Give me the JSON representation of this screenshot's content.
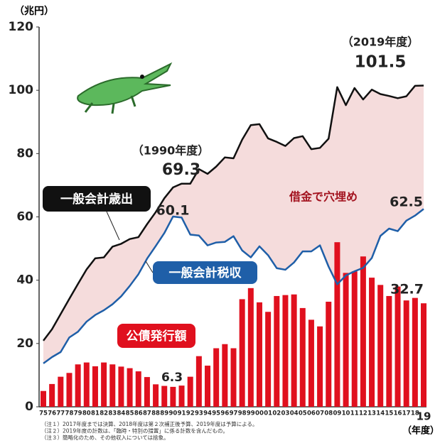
{
  "chart_data": {
    "type": "bar-line",
    "y_unit": "（兆円）",
    "x_unit": "（年度）",
    "categories": [
      "75",
      "76",
      "77",
      "78",
      "79",
      "80",
      "81",
      "82",
      "83",
      "84",
      "85",
      "86",
      "87",
      "88",
      "89",
      "90",
      "91",
      "92",
      "93",
      "94",
      "95",
      "96",
      "97",
      "98",
      "99",
      "00",
      "01",
      "02",
      "03",
      "04",
      "05",
      "06",
      "07",
      "08",
      "09",
      "10",
      "11",
      "12",
      "13",
      "14",
      "15",
      "16",
      "17",
      "18",
      "19"
    ],
    "series": [
      {
        "name": "一般会計歳出",
        "kind": "line",
        "color": "#111111",
        "values": [
          20.9,
          24.5,
          29.3,
          34.1,
          38.8,
          43.4,
          46.9,
          47.2,
          50.6,
          51.5,
          53.0,
          53.6,
          57.7,
          61.5,
          65.9,
          69.3,
          70.5,
          70.5,
          75.1,
          73.6,
          75.9,
          78.8,
          78.5,
          84.4,
          89.0,
          89.3,
          84.8,
          83.7,
          82.4,
          84.9,
          85.5,
          81.4,
          81.8,
          84.7,
          101.0,
          95.3,
          100.7,
          97.1,
          100.2,
          98.8,
          98.2,
          97.5,
          98.1,
          101.4,
          101.5
        ]
      },
      {
        "name": "一般会計税収",
        "kind": "line",
        "color": "#1f5fa8",
        "values": [
          13.7,
          15.7,
          17.3,
          21.9,
          23.7,
          26.9,
          29.0,
          30.5,
          32.4,
          34.9,
          38.2,
          41.9,
          46.8,
          50.8,
          54.9,
          60.1,
          59.8,
          54.4,
          54.1,
          51.0,
          51.9,
          52.1,
          53.9,
          49.4,
          47.2,
          50.7,
          47.9,
          43.8,
          43.3,
          45.6,
          49.1,
          49.1,
          51.0,
          44.3,
          38.7,
          41.5,
          42.8,
          43.9,
          47.0,
          54.0,
          56.3,
          55.5,
          58.8,
          60.4,
          62.5
        ]
      },
      {
        "name": "公債発行額",
        "kind": "bar",
        "color": "#e0101e",
        "values": [
          5.0,
          7.2,
          9.5,
          10.7,
          13.4,
          14.0,
          12.8,
          14.0,
          13.4,
          12.7,
          12.2,
          11.2,
          9.4,
          7.1,
          6.6,
          6.3,
          6.7,
          9.5,
          16.0,
          13.0,
          18.5,
          19.8,
          18.5,
          34.0,
          37.5,
          33.0,
          30.0,
          35.0,
          35.3,
          35.5,
          31.2,
          27.5,
          25.4,
          33.2,
          52.0,
          42.3,
          42.8,
          47.5,
          40.8,
          38.5,
          35.0,
          38.0,
          33.6,
          34.4,
          32.7
        ]
      }
    ],
    "ylim": [
      0,
      120
    ],
    "yticks": [
      0,
      20,
      40,
      60,
      80,
      100,
      120
    ],
    "annotations": {
      "y2019": "（2019年度）",
      "y1990": "（1990年度）",
      "gap": "借金で穴埋め"
    },
    "notes": [
      "（注１）2017年度までは決算、2018年度は第２次補正後予算、2019年度は予算による。",
      "（注２）2019年度の計数は、「臨時・特別の措置」に係る計数を含んだもの。",
      "（注３）簡略化のため、その他収入については捨象。"
    ]
  }
}
